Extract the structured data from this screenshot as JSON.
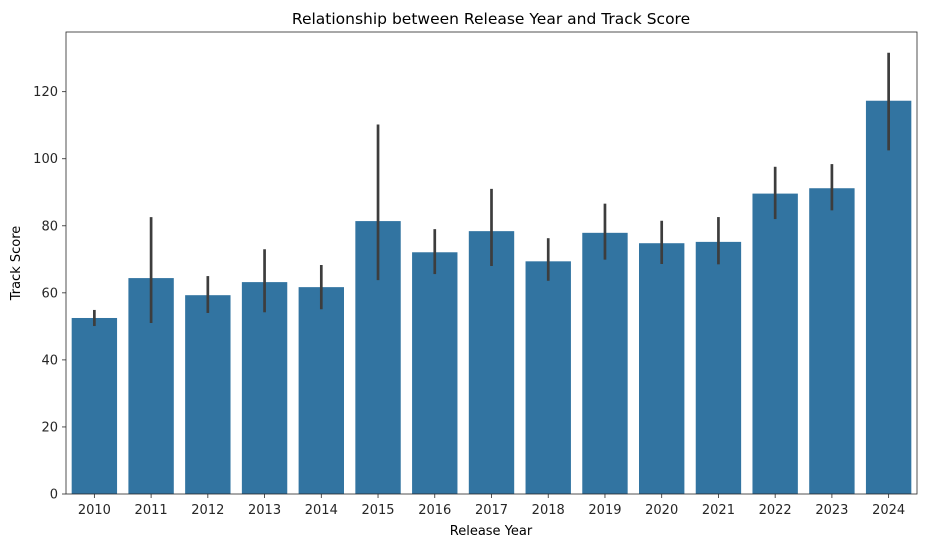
{
  "chart_data": {
    "type": "bar",
    "title": "Relationship between Release Year and Track Score",
    "xlabel": "Release Year",
    "ylabel": "Track Score",
    "categories": [
      "2010",
      "2011",
      "2012",
      "2013",
      "2014",
      "2015",
      "2016",
      "2017",
      "2018",
      "2019",
      "2020",
      "2021",
      "2022",
      "2023",
      "2024"
    ],
    "values": [
      52.5,
      64.4,
      59.3,
      63.2,
      61.7,
      81.4,
      72.1,
      78.4,
      69.4,
      77.9,
      74.8,
      75.2,
      89.6,
      91.2,
      117.3
    ],
    "error_low": [
      50.1,
      51.0,
      54.0,
      54.2,
      55.1,
      63.8,
      65.6,
      68.0,
      63.6,
      69.9,
      68.6,
      68.5,
      82.0,
      84.6,
      102.5
    ],
    "error_high": [
      54.9,
      82.6,
      65.0,
      73.0,
      68.3,
      110.2,
      79.0,
      91.0,
      76.3,
      86.6,
      81.5,
      82.6,
      97.6,
      98.4,
      131.6
    ],
    "yticks": [
      0,
      20,
      40,
      60,
      80,
      100,
      120
    ],
    "ylim": [
      0,
      137.8
    ],
    "grid": false,
    "bar_color": "#3274a1",
    "error_color": "#3d3d3d"
  }
}
